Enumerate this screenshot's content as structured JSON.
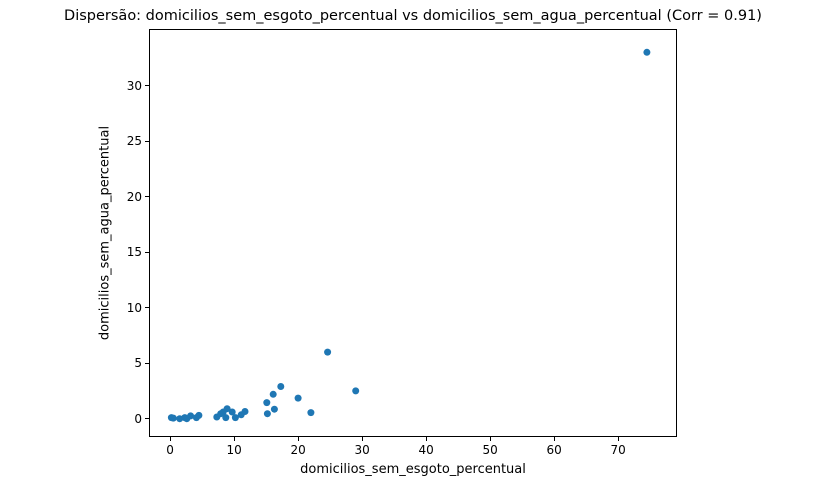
{
  "chart_data": {
    "type": "scatter",
    "title": "Dispersão: domicilios_sem_esgoto_percentual vs domicilios_sem_agua_percentual (Corr = 0.91)",
    "xlabel": "domicilios_sem_esgoto_percentual",
    "ylabel": "domicilios_sem_agua_percentual",
    "correlation": 0.91,
    "marker_color": "#1f77b4",
    "marker_radius": 3.5,
    "grid": false,
    "legend": "none",
    "xlim": [
      -3.3,
      79.2
    ],
    "ylim": [
      -1.65,
      35.1
    ],
    "x_ticks": [
      0,
      10,
      20,
      30,
      40,
      50,
      60,
      70
    ],
    "y_ticks": [
      0,
      5,
      10,
      15,
      20,
      25,
      30
    ],
    "points": [
      [
        0.2,
        0.1
      ],
      [
        0.5,
        0.05
      ],
      [
        1.5,
        0.0
      ],
      [
        2.3,
        0.1
      ],
      [
        2.6,
        0.0
      ],
      [
        3.2,
        0.25
      ],
      [
        4.1,
        0.1
      ],
      [
        4.5,
        0.3
      ],
      [
        7.3,
        0.15
      ],
      [
        7.9,
        0.45
      ],
      [
        8.3,
        0.6
      ],
      [
        8.7,
        0.1
      ],
      [
        8.9,
        0.9
      ],
      [
        9.7,
        0.6
      ],
      [
        10.2,
        0.1
      ],
      [
        11.1,
        0.35
      ],
      [
        11.7,
        0.65
      ],
      [
        15.1,
        1.45
      ],
      [
        15.2,
        0.45
      ],
      [
        16.1,
        2.2
      ],
      [
        16.3,
        0.85
      ],
      [
        17.3,
        2.9
      ],
      [
        20.0,
        1.85
      ],
      [
        22.0,
        0.55
      ],
      [
        24.6,
        6.0
      ],
      [
        29.0,
        2.5
      ],
      [
        74.5,
        33.0
      ]
    ]
  }
}
